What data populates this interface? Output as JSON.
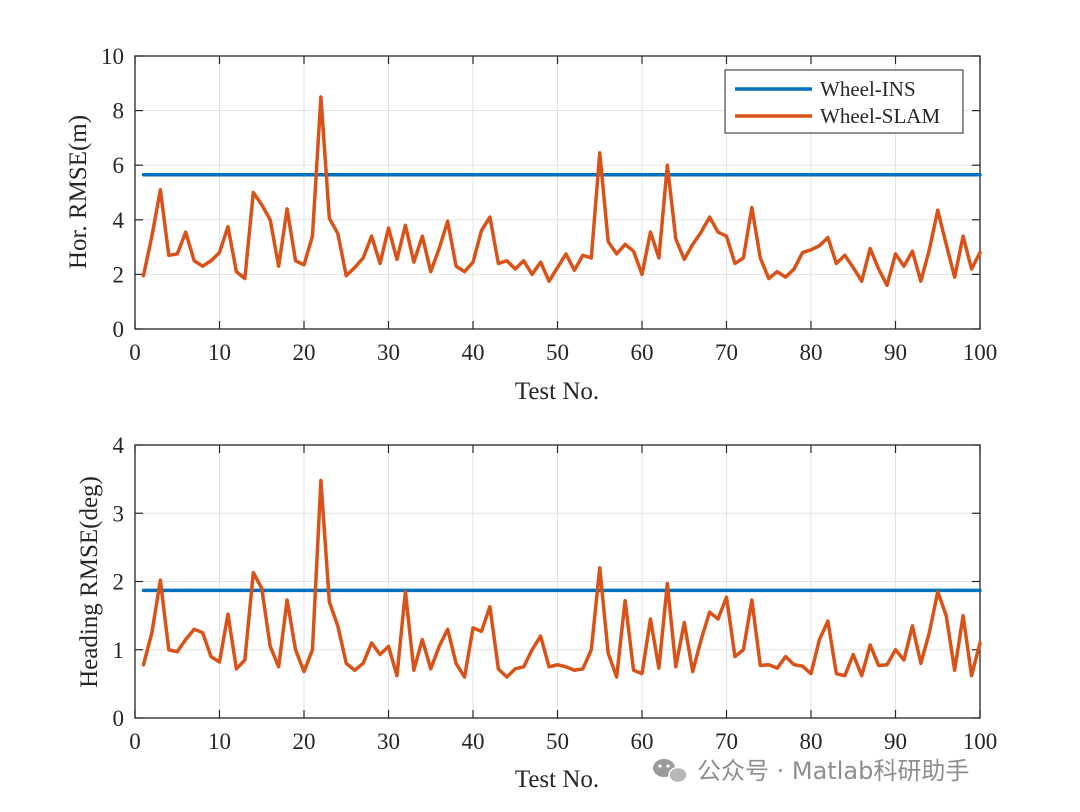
{
  "chart_data": [
    {
      "type": "line",
      "xlabel": "Test No.",
      "ylabel": "Hor. RMSE(m)",
      "xlim": [
        0,
        100
      ],
      "ylim": [
        0,
        10
      ],
      "xticks": [
        0,
        10,
        20,
        30,
        40,
        50,
        60,
        70,
        80,
        90,
        100
      ],
      "yticks": [
        0,
        2,
        4,
        6,
        8,
        10
      ],
      "grid": true,
      "legend": {
        "position": "top-right",
        "entries": [
          "Wheel-INS",
          "Wheel-SLAM"
        ]
      },
      "x": [
        1,
        2,
        3,
        4,
        5,
        6,
        7,
        8,
        9,
        10,
        11,
        12,
        13,
        14,
        15,
        16,
        17,
        18,
        19,
        20,
        21,
        22,
        23,
        24,
        25,
        26,
        27,
        28,
        29,
        30,
        31,
        32,
        33,
        34,
        35,
        36,
        37,
        38,
        39,
        40,
        41,
        42,
        43,
        44,
        45,
        46,
        47,
        48,
        49,
        50,
        51,
        52,
        53,
        54,
        55,
        56,
        57,
        58,
        59,
        60,
        61,
        62,
        63,
        64,
        65,
        66,
        67,
        68,
        69,
        70,
        71,
        72,
        73,
        74,
        75,
        76,
        77,
        78,
        79,
        80,
        81,
        82,
        83,
        84,
        85,
        86,
        87,
        88,
        89,
        90,
        91,
        92,
        93,
        94,
        95,
        96,
        97,
        98,
        99,
        100
      ],
      "series": [
        {
          "name": "Wheel-INS",
          "color": "#0072BD",
          "values": [
            5.65,
            5.65,
            5.65,
            5.65,
            5.65,
            5.65,
            5.65,
            5.65,
            5.65,
            5.65,
            5.65,
            5.65,
            5.65,
            5.65,
            5.65,
            5.65,
            5.65,
            5.65,
            5.65,
            5.65,
            5.65,
            5.65,
            5.65,
            5.65,
            5.65,
            5.65,
            5.65,
            5.65,
            5.65,
            5.65,
            5.65,
            5.65,
            5.65,
            5.65,
            5.65,
            5.65,
            5.65,
            5.65,
            5.65,
            5.65,
            5.65,
            5.65,
            5.65,
            5.65,
            5.65,
            5.65,
            5.65,
            5.65,
            5.65,
            5.65,
            5.65,
            5.65,
            5.65,
            5.65,
            5.65,
            5.65,
            5.65,
            5.65,
            5.65,
            5.65,
            5.65,
            5.65,
            5.65,
            5.65,
            5.65,
            5.65,
            5.65,
            5.65,
            5.65,
            5.65,
            5.65,
            5.65,
            5.65,
            5.65,
            5.65,
            5.65,
            5.65,
            5.65,
            5.65,
            5.65,
            5.65,
            5.65,
            5.65,
            5.65,
            5.65,
            5.65,
            5.65,
            5.65,
            5.65,
            5.65,
            5.65,
            5.65,
            5.65,
            5.65,
            5.65,
            5.65,
            5.65,
            5.65,
            5.65,
            5.65
          ]
        },
        {
          "name": "Wheel-SLAM",
          "color": "#D95319",
          "values": [
            1.95,
            3.4,
            5.1,
            2.7,
            2.75,
            3.55,
            2.5,
            2.3,
            2.5,
            2.8,
            3.75,
            2.1,
            1.85,
            5.0,
            4.55,
            4.0,
            2.3,
            4.4,
            2.5,
            2.35,
            3.4,
            8.5,
            4.05,
            3.5,
            1.95,
            2.25,
            2.6,
            3.4,
            2.4,
            3.7,
            2.55,
            3.8,
            2.45,
            3.4,
            2.1,
            2.95,
            3.95,
            2.3,
            2.1,
            2.45,
            3.6,
            4.1,
            2.4,
            2.5,
            2.2,
            2.5,
            2.0,
            2.45,
            1.75,
            2.25,
            2.75,
            2.15,
            2.7,
            2.6,
            6.45,
            3.2,
            2.75,
            3.1,
            2.85,
            2.0,
            3.55,
            2.6,
            6.0,
            3.3,
            2.55,
            3.1,
            3.55,
            4.1,
            3.55,
            3.4,
            2.4,
            2.6,
            4.45,
            2.6,
            1.85,
            2.1,
            1.9,
            2.2,
            2.8,
            2.9,
            3.05,
            3.35,
            2.4,
            2.7,
            2.25,
            1.75,
            2.95,
            2.2,
            1.6,
            2.75,
            2.3,
            2.85,
            1.75,
            2.9,
            4.35,
            3.1,
            1.9,
            3.4,
            2.2,
            2.8
          ]
        }
      ]
    },
    {
      "type": "line",
      "xlabel": "Test No.",
      "ylabel": "Heading RMSE(deg)",
      "xlim": [
        0,
        100
      ],
      "ylim": [
        0,
        4
      ],
      "xticks": [
        0,
        10,
        20,
        30,
        40,
        50,
        60,
        70,
        80,
        90,
        100
      ],
      "yticks": [
        0,
        1,
        2,
        3,
        4
      ],
      "grid": true,
      "legend": null,
      "x": [
        1,
        2,
        3,
        4,
        5,
        6,
        7,
        8,
        9,
        10,
        11,
        12,
        13,
        14,
        15,
        16,
        17,
        18,
        19,
        20,
        21,
        22,
        23,
        24,
        25,
        26,
        27,
        28,
        29,
        30,
        31,
        32,
        33,
        34,
        35,
        36,
        37,
        38,
        39,
        40,
        41,
        42,
        43,
        44,
        45,
        46,
        47,
        48,
        49,
        50,
        51,
        52,
        53,
        54,
        55,
        56,
        57,
        58,
        59,
        60,
        61,
        62,
        63,
        64,
        65,
        66,
        67,
        68,
        69,
        70,
        71,
        72,
        73,
        74,
        75,
        76,
        77,
        78,
        79,
        80,
        81,
        82,
        83,
        84,
        85,
        86,
        87,
        88,
        89,
        90,
        91,
        92,
        93,
        94,
        95,
        96,
        97,
        98,
        99,
        100
      ],
      "series": [
        {
          "name": "Wheel-INS",
          "color": "#0072BD",
          "values": [
            1.87,
            1.87,
            1.87,
            1.87,
            1.87,
            1.87,
            1.87,
            1.87,
            1.87,
            1.87,
            1.87,
            1.87,
            1.87,
            1.87,
            1.87,
            1.87,
            1.87,
            1.87,
            1.87,
            1.87,
            1.87,
            1.87,
            1.87,
            1.87,
            1.87,
            1.87,
            1.87,
            1.87,
            1.87,
            1.87,
            1.87,
            1.87,
            1.87,
            1.87,
            1.87,
            1.87,
            1.87,
            1.87,
            1.87,
            1.87,
            1.87,
            1.87,
            1.87,
            1.87,
            1.87,
            1.87,
            1.87,
            1.87,
            1.87,
            1.87,
            1.87,
            1.87,
            1.87,
            1.87,
            1.87,
            1.87,
            1.87,
            1.87,
            1.87,
            1.87,
            1.87,
            1.87,
            1.87,
            1.87,
            1.87,
            1.87,
            1.87,
            1.87,
            1.87,
            1.87,
            1.87,
            1.87,
            1.87,
            1.87,
            1.87,
            1.87,
            1.87,
            1.87,
            1.87,
            1.87,
            1.87,
            1.87,
            1.87,
            1.87,
            1.87,
            1.87,
            1.87,
            1.87,
            1.87,
            1.87,
            1.87,
            1.87,
            1.87,
            1.87,
            1.87,
            1.87,
            1.87,
            1.87,
            1.87,
            1.87
          ]
        },
        {
          "name": "Wheel-SLAM",
          "color": "#D95319",
          "values": [
            0.78,
            1.25,
            2.02,
            1.0,
            0.97,
            1.15,
            1.3,
            1.25,
            0.9,
            0.82,
            1.52,
            0.72,
            0.85,
            2.13,
            1.9,
            1.05,
            0.75,
            1.73,
            1.0,
            0.68,
            1.0,
            3.48,
            1.7,
            1.35,
            0.8,
            0.7,
            0.8,
            1.1,
            0.93,
            1.05,
            0.62,
            1.85,
            0.7,
            1.15,
            0.72,
            1.05,
            1.3,
            0.8,
            0.6,
            1.32,
            1.27,
            1.63,
            0.72,
            0.6,
            0.72,
            0.75,
            1.0,
            1.2,
            0.75,
            0.78,
            0.75,
            0.7,
            0.72,
            1.0,
            2.2,
            0.95,
            0.6,
            1.72,
            0.7,
            0.65,
            1.45,
            0.73,
            1.97,
            0.75,
            1.4,
            0.68,
            1.15,
            1.55,
            1.45,
            1.77,
            0.9,
            1.0,
            1.73,
            0.77,
            0.78,
            0.73,
            0.9,
            0.78,
            0.76,
            0.65,
            1.15,
            1.42,
            0.65,
            0.62,
            0.93,
            0.62,
            1.07,
            0.77,
            0.78,
            1.0,
            0.85,
            1.35,
            0.8,
            1.25,
            1.85,
            1.5,
            0.7,
            1.5,
            0.62,
            1.1
          ]
        }
      ]
    }
  ],
  "watermark": {
    "text": "公众号 · Matlab科研助手",
    "icon": "wechat-icon"
  }
}
